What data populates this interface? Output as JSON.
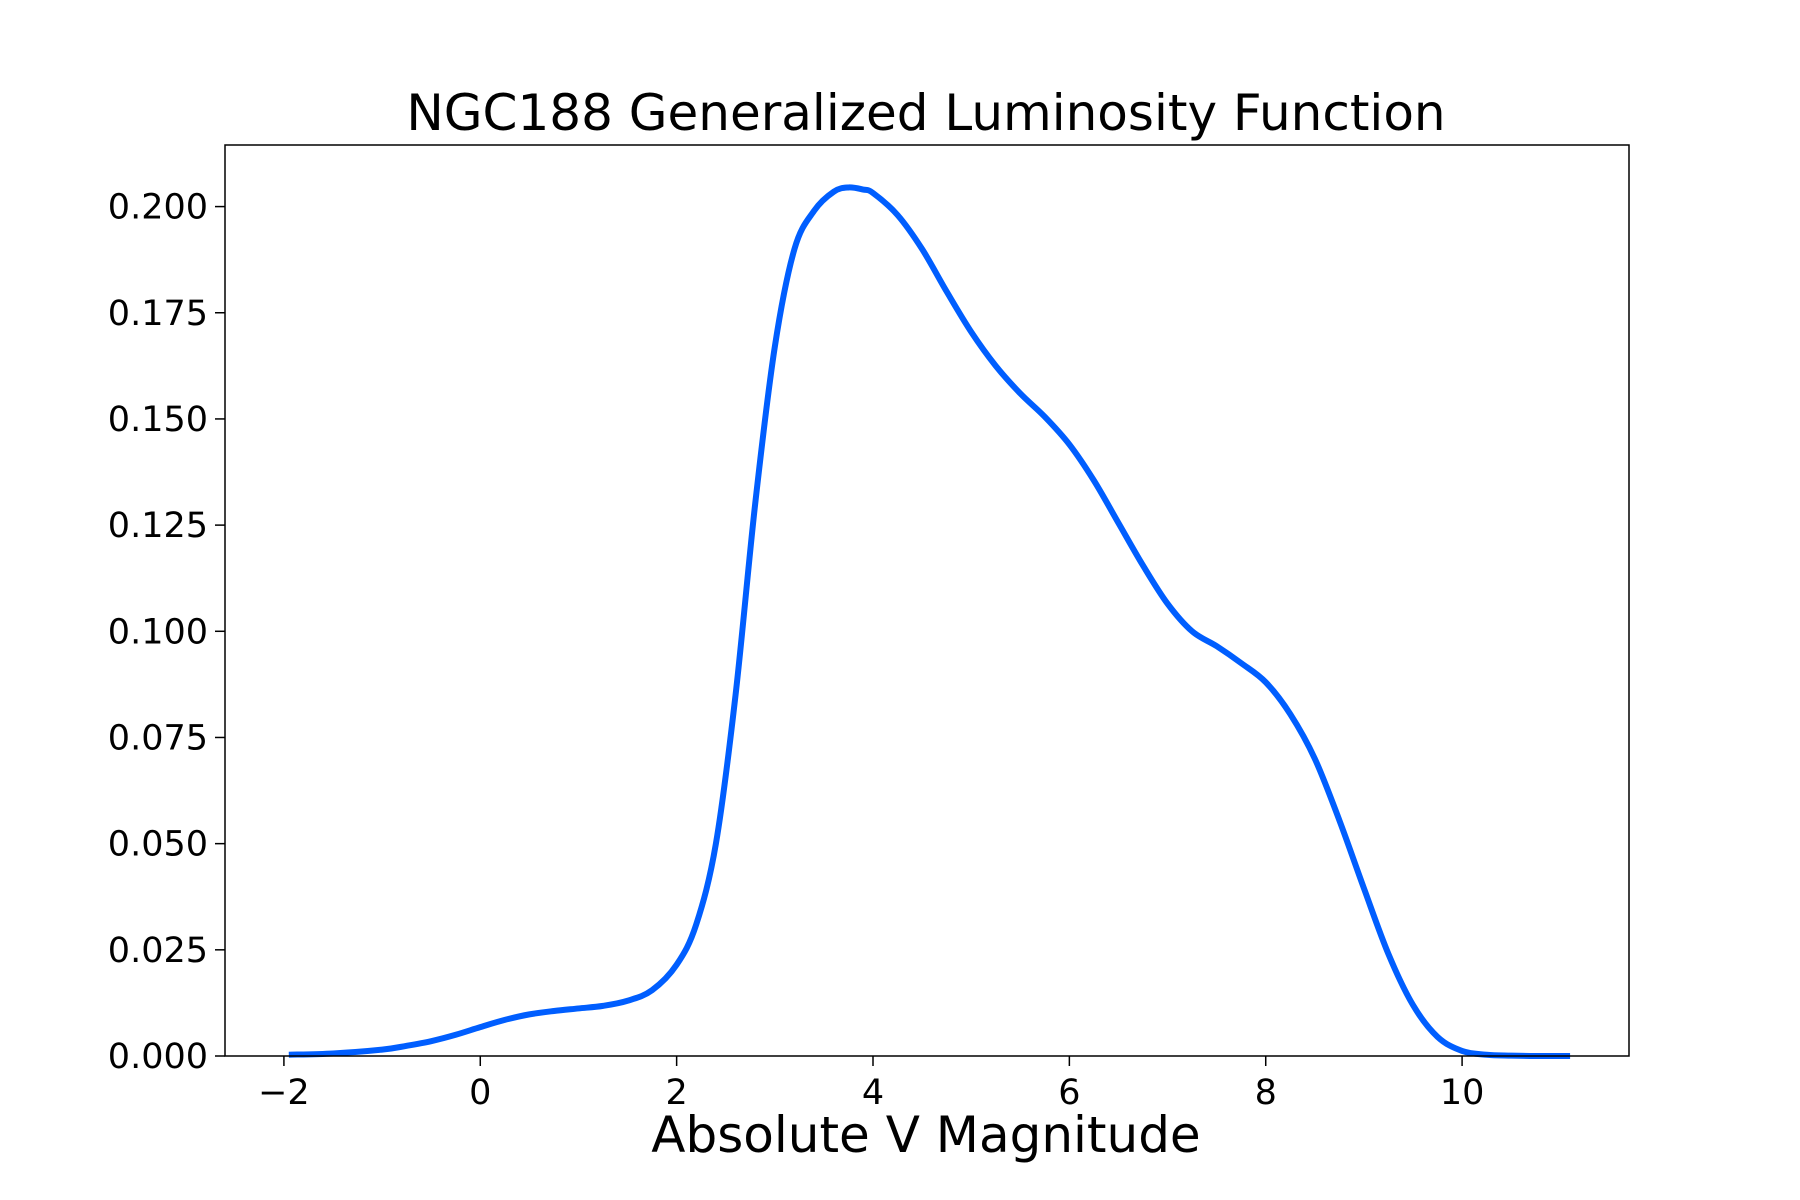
{
  "chart_data": {
    "type": "line",
    "title": "NGC188 Generalized Luminosity Function",
    "xlabel": "Absolute V Magnitude",
    "ylabel": "",
    "xlim": [
      -2.6,
      11.7
    ],
    "ylim": [
      0,
      0.2145
    ],
    "xticks": [
      -2,
      0,
      2,
      4,
      6,
      8,
      10
    ],
    "xtick_labels": [
      "−2",
      "0",
      "2",
      "4",
      "6",
      "8",
      "10"
    ],
    "yticks": [
      0,
      0.025,
      0.05,
      0.075,
      0.1,
      0.125,
      0.15,
      0.175,
      0.2
    ],
    "ytick_labels": [
      "0.000",
      "0.025",
      "0.050",
      "0.075",
      "0.100",
      "0.125",
      "0.150",
      "0.175",
      "0.200"
    ],
    "grid": false,
    "line_color": "#005eff",
    "series": [
      {
        "x": [
          -1.95,
          -1.5,
          -1.0,
          -0.75,
          -0.5,
          -0.25,
          0.0,
          0.25,
          0.5,
          0.75,
          1.0,
          1.25,
          1.5,
          1.75,
          2.0,
          2.2,
          2.4,
          2.6,
          2.8,
          3.0,
          3.2,
          3.4,
          3.6,
          3.75,
          3.9,
          4.0,
          4.25,
          4.5,
          4.75,
          5.0,
          5.25,
          5.5,
          5.75,
          6.0,
          6.25,
          6.5,
          6.75,
          7.0,
          7.25,
          7.5,
          7.75,
          8.0,
          8.25,
          8.5,
          8.75,
          9.0,
          9.25,
          9.5,
          9.75,
          10.0,
          10.25,
          10.5,
          10.75,
          11.1
        ],
        "y": [
          0.0003,
          0.0006,
          0.0015,
          0.0024,
          0.0035,
          0.005,
          0.0068,
          0.0085,
          0.0098,
          0.0106,
          0.0112,
          0.0118,
          0.013,
          0.0155,
          0.0215,
          0.031,
          0.05,
          0.085,
          0.13,
          0.167,
          0.19,
          0.199,
          0.2035,
          0.2045,
          0.204,
          0.2032,
          0.198,
          0.19,
          0.18,
          0.1705,
          0.1625,
          0.156,
          0.1505,
          0.144,
          0.1355,
          0.1255,
          0.1155,
          0.1065,
          0.1,
          0.0965,
          0.0925,
          0.088,
          0.0805,
          0.07,
          0.0555,
          0.0395,
          0.024,
          0.012,
          0.0045,
          0.0012,
          0.0003,
          0.0001,
          0.0,
          0.0
        ]
      }
    ]
  }
}
